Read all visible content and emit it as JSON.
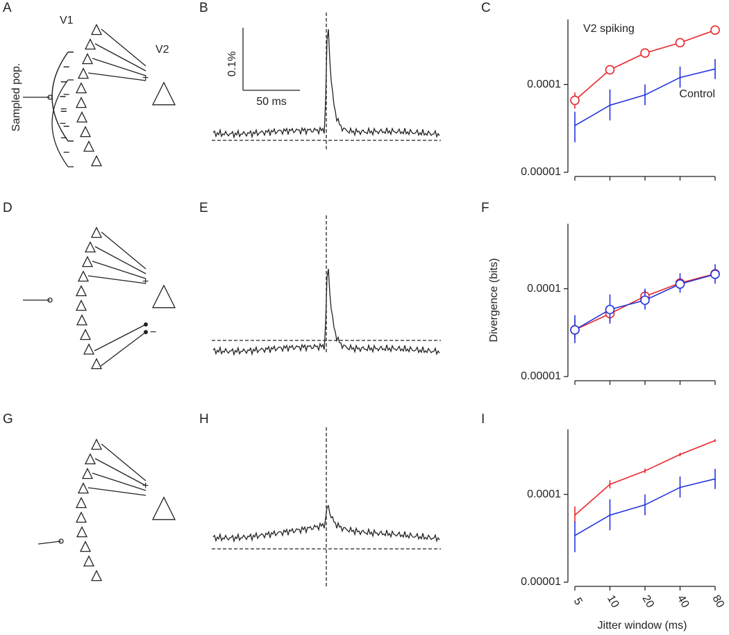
{
  "panels": [
    "A",
    "B",
    "C",
    "D",
    "E",
    "F",
    "G",
    "H",
    "I"
  ],
  "diagram": {
    "v1": "V1",
    "v2": "V2",
    "sampled": "Sampled pop.",
    "plus": "+",
    "minus": "−"
  },
  "scale_bar": {
    "y": "0.1%",
    "x": "50 ms"
  },
  "chart_data": [
    {
      "type": "line",
      "log_y": true,
      "categories": [
        null,
        null,
        null,
        null,
        null
      ],
      "ylim": [
        1e-05,
        0.00055
      ],
      "yticks": [
        1e-05,
        0.0001
      ],
      "annotations": [
        {
          "text": "V2 spiking",
          "color": "#e8262a"
        },
        {
          "text": "Control",
          "color": "#2233dd"
        }
      ],
      "series": [
        {
          "name": "V2 spiking",
          "color": "#e8262a",
          "marker": "circle",
          "values": [
            6.6e-05,
            0.000147,
            0.000228,
            0.000299,
            0.000416
          ],
          "lower": [
            5.3e-05,
            0.00013,
            0.000215,
            0.000285,
            0.000395
          ],
          "upper": [
            8.1e-05,
            0.000165,
            0.000242,
            0.000315,
            0.000438
          ]
        },
        {
          "name": "Control",
          "color": "#2233dd",
          "values": [
            3.4e-05,
            5.8e-05,
            7.6e-05,
            0.00012,
            0.00015
          ],
          "lower": [
            2.2e-05,
            3.9e-05,
            5.8e-05,
            9.2e-05,
            0.000115
          ],
          "upper": [
            4.9e-05,
            8.8e-05,
            0.0001,
            0.00016,
            0.000195
          ]
        }
      ]
    },
    {
      "type": "line",
      "log_y": true,
      "categories": [
        null,
        null,
        null,
        null,
        null
      ],
      "y_label": "Divergence (bits)",
      "ylim": [
        1e-05,
        0.00055
      ],
      "yticks": [
        1e-05,
        0.0001
      ],
      "series": [
        {
          "color": "#e8262a",
          "marker": "circle",
          "values": [
            3.4e-05,
            5.2e-05,
            8.2e-05,
            0.000116,
            0.000148
          ],
          "lower": [
            2.7e-05,
            4.3e-05,
            7e-05,
            0.0001,
            0.00013
          ],
          "upper": [
            4.4e-05,
            6.4e-05,
            9.6e-05,
            0.000132,
            0.000168
          ]
        },
        {
          "color": "#2233dd",
          "marker": "circle",
          "values": [
            3.4e-05,
            5.8e-05,
            7.4e-05,
            0.000113,
            0.000146
          ],
          "lower": [
            2.4e-05,
            4e-05,
            5.8e-05,
            9e-05,
            0.000114
          ],
          "upper": [
            5e-05,
            8.6e-05,
            0.0001,
            0.00015,
            0.00019
          ]
        }
      ]
    },
    {
      "type": "line",
      "log_y": true,
      "categories": [
        "5",
        "10",
        "20",
        "40",
        "80"
      ],
      "x_label": "Jitter window (ms)",
      "ylim": [
        1e-05,
        0.00055
      ],
      "yticks": [
        1e-05,
        0.0001
      ],
      "series": [
        {
          "color": "#e8262a",
          "values": [
            5.8e-05,
            0.00013,
            0.000185,
            0.000285,
            0.00041
          ],
          "lower": [
            4.7e-05,
            0.000117,
            0.000175,
            0.000272,
            0.000395
          ],
          "upper": [
            7.3e-05,
            0.000145,
            0.000197,
            0.000298,
            0.000425
          ]
        },
        {
          "color": "#2233dd",
          "values": [
            3.4e-05,
            5.8e-05,
            7.6e-05,
            0.00012,
            0.00015
          ],
          "lower": [
            2.2e-05,
            3.9e-05,
            5.8e-05,
            9.2e-05,
            0.000115
          ],
          "upper": [
            4.9e-05,
            8.8e-05,
            0.0001,
            0.00016,
            0.000195
          ]
        }
      ]
    }
  ]
}
